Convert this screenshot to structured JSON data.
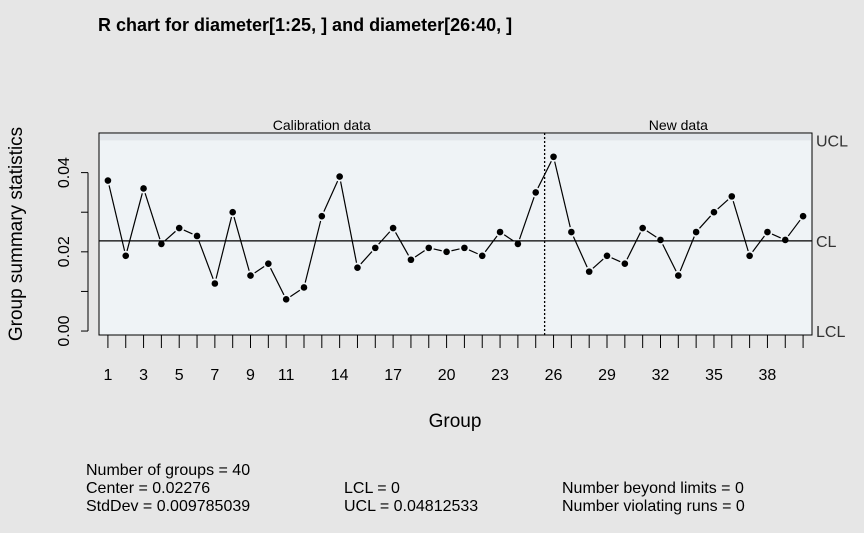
{
  "chart_data": {
    "type": "line",
    "title": "R chart for diameter[1:25, ] and diameter[26:40, ]",
    "xlabel": "Group",
    "ylabel": "Group summary statistics",
    "x_tick_labels": [
      "1",
      "3",
      "5",
      "7",
      "9",
      "11",
      "14",
      "17",
      "20",
      "23",
      "26",
      "29",
      "32",
      "35",
      "38"
    ],
    "x_tick_groups": [
      1,
      3,
      5,
      7,
      9,
      11,
      14,
      17,
      20,
      23,
      26,
      29,
      32,
      35,
      38
    ],
    "y_ticks": [
      "0.00",
      "0.02",
      "0.04"
    ],
    "y_tick_values": [
      0.0,
      0.02,
      0.04
    ],
    "xlim": [
      0.5,
      40.5
    ],
    "ylim": [
      -0.001,
      0.05
    ],
    "sections": [
      {
        "label": "Calibration data",
        "from": 1,
        "to": 25
      },
      {
        "label": "New data",
        "from": 26,
        "to": 40
      }
    ],
    "limits": {
      "UCL": 0.04812533,
      "CL": 0.02276,
      "LCL": 0
    },
    "limit_labels": {
      "UCL": "UCL",
      "CL": "CL",
      "LCL": "LCL"
    },
    "x": [
      1,
      2,
      3,
      4,
      5,
      6,
      7,
      8,
      9,
      10,
      11,
      12,
      13,
      14,
      15,
      16,
      17,
      18,
      19,
      20,
      21,
      22,
      23,
      24,
      25,
      26,
      27,
      28,
      29,
      30,
      31,
      32,
      33,
      34,
      35,
      36,
      37,
      38,
      39,
      40
    ],
    "values": [
      0.038,
      0.019,
      0.036,
      0.022,
      0.026,
      0.024,
      0.012,
      0.03,
      0.014,
      0.017,
      0.008,
      0.011,
      0.029,
      0.039,
      0.016,
      0.021,
      0.026,
      0.018,
      0.021,
      0.02,
      0.021,
      0.019,
      0.025,
      0.022,
      0.035,
      0.044,
      0.025,
      0.015,
      0.019,
      0.017,
      0.026,
      0.023,
      0.014,
      0.025,
      0.03,
      0.034,
      0.019,
      0.025,
      0.023,
      0.029
    ],
    "colors": {
      "background": "#e6e6e6",
      "plot_area": "#eff3f6",
      "line": "#000000"
    }
  },
  "stats": {
    "groups": "Number of groups = 40",
    "center": "Center = 0.02276",
    "stddev": "StdDev = 0.009785039",
    "lcl": "LCL = 0",
    "ucl": "UCL = 0.04812533",
    "beyond": "Number beyond limits = 0",
    "runs": "Number violating runs = 0"
  }
}
